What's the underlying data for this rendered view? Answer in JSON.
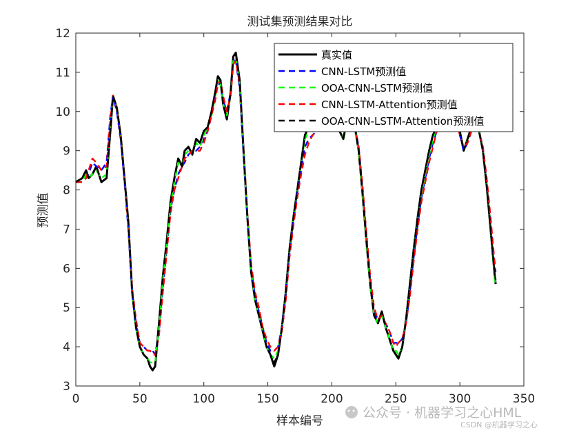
{
  "chart_data": {
    "type": "line",
    "title": "测试集预测结果对比",
    "xlabel": "样本编号",
    "ylabel": "预测值",
    "xlim": [
      0,
      350
    ],
    "ylim": [
      3,
      12
    ],
    "xticks": [
      0,
      50,
      100,
      150,
      200,
      250,
      300,
      350
    ],
    "yticks": [
      3,
      4,
      5,
      6,
      7,
      8,
      9,
      10,
      11,
      12
    ],
    "grid": false,
    "legend_position": "top-right",
    "series": [
      {
        "name": "真实值",
        "color": "#000000",
        "style": "solid",
        "x": [
          0,
          5,
          8,
          10,
          13,
          16,
          20,
          24,
          27,
          29,
          32,
          35,
          38,
          41,
          44,
          47,
          50,
          53,
          56,
          58,
          60,
          62,
          65,
          68,
          71,
          74,
          77,
          80,
          83,
          85,
          88,
          91,
          94,
          97,
          100,
          103,
          106,
          109,
          111,
          113,
          115,
          118,
          121,
          123,
          125,
          128,
          131,
          134,
          137,
          140,
          143,
          146,
          149,
          152,
          155,
          158,
          161,
          164,
          167,
          170,
          173,
          176,
          179,
          182,
          185,
          188,
          191,
          194,
          197,
          200,
          203,
          206,
          209,
          212,
          215,
          218,
          221,
          224,
          227,
          230,
          233,
          236,
          239,
          242,
          245,
          248,
          250,
          252,
          255,
          258,
          261,
          264,
          267,
          270,
          273,
          276,
          279,
          282,
          285,
          288,
          291,
          294,
          297,
          300,
          303,
          306,
          309,
          312,
          315,
          318,
          321,
          324,
          327,
          328
        ],
        "y": [
          8.2,
          8.3,
          8.5,
          8.3,
          8.4,
          8.6,
          8.2,
          8.3,
          9.5,
          10.4,
          10.1,
          9.4,
          8.3,
          7.2,
          5.4,
          4.5,
          4.0,
          3.8,
          3.7,
          3.5,
          3.4,
          3.5,
          4.6,
          5.8,
          6.7,
          7.7,
          8.3,
          8.8,
          8.6,
          9.0,
          9.1,
          8.9,
          9.3,
          9.2,
          9.5,
          9.6,
          10.0,
          10.5,
          10.9,
          10.8,
          10.2,
          9.8,
          10.5,
          11.4,
          11.5,
          10.8,
          9.0,
          7.3,
          5.9,
          5.2,
          4.8,
          4.4,
          4.0,
          3.8,
          3.5,
          3.8,
          4.5,
          5.4,
          6.5,
          7.3,
          8.0,
          8.7,
          9.4,
          9.6,
          9.5,
          9.7,
          9.8,
          9.9,
          10.0,
          9.9,
          9.7,
          9.5,
          9.3,
          9.8,
          9.9,
          9.6,
          9.0,
          7.9,
          6.7,
          5.6,
          4.8,
          4.6,
          4.9,
          4.5,
          4.2,
          3.9,
          3.8,
          3.7,
          4.0,
          4.7,
          5.6,
          6.5,
          7.3,
          8.0,
          8.5,
          9.0,
          9.4,
          9.6,
          9.7,
          9.8,
          9.9,
          10.0,
          9.9,
          9.5,
          9.0,
          9.3,
          9.6,
          9.7,
          9.5,
          9.0,
          8.1,
          7.0,
          5.9,
          5.6
        ]
      },
      {
        "name": "CNN-LSTM预测值",
        "color": "#0000ff",
        "style": "dashed",
        "x": [
          0,
          5,
          8,
          10,
          13,
          16,
          20,
          24,
          27,
          29,
          32,
          35,
          38,
          41,
          44,
          47,
          50,
          53,
          56,
          58,
          60,
          62,
          65,
          68,
          71,
          74,
          77,
          80,
          83,
          85,
          88,
          91,
          94,
          97,
          100,
          103,
          106,
          109,
          111,
          113,
          115,
          118,
          121,
          123,
          125,
          128,
          131,
          134,
          137,
          140,
          143,
          146,
          149,
          152,
          155,
          158,
          161,
          164,
          167,
          170,
          173,
          176,
          179,
          182,
          185,
          188,
          191,
          194,
          197,
          200,
          203,
          206,
          209,
          212,
          215,
          218,
          221,
          224,
          227,
          230,
          233,
          236,
          239,
          242,
          245,
          248,
          250,
          252,
          255,
          258,
          261,
          264,
          267,
          270,
          273,
          276,
          279,
          282,
          285,
          288,
          291,
          294,
          297,
          300,
          303,
          306,
          309,
          312,
          315,
          318,
          321,
          324,
          327,
          328
        ],
        "y": [
          8.2,
          8.2,
          8.3,
          8.4,
          8.7,
          8.6,
          8.5,
          8.7,
          9.9,
          10.4,
          10.0,
          9.3,
          8.2,
          7.0,
          5.4,
          4.6,
          4.1,
          4.0,
          3.9,
          3.9,
          3.9,
          3.8,
          4.4,
          5.5,
          6.5,
          7.5,
          8.0,
          8.4,
          8.6,
          8.7,
          8.9,
          9.0,
          9.0,
          9.1,
          9.3,
          9.5,
          9.9,
          10.4,
          10.7,
          10.7,
          10.3,
          10.0,
          10.5,
          11.3,
          11.3,
          10.6,
          8.9,
          7.3,
          6.0,
          5.3,
          4.9,
          4.5,
          4.1,
          3.9,
          3.9,
          4.0,
          4.5,
          5.3,
          6.4,
          7.2,
          7.9,
          8.5,
          9.1,
          9.3,
          9.4,
          9.5,
          9.6,
          9.7,
          9.8,
          9.8,
          9.7,
          9.6,
          9.5,
          9.6,
          9.7,
          9.6,
          9.1,
          8.0,
          6.8,
          5.7,
          4.9,
          4.7,
          4.8,
          4.6,
          4.4,
          4.1,
          4.1,
          4.1,
          4.2,
          4.6,
          5.4,
          6.3,
          7.1,
          7.8,
          8.3,
          8.8,
          9.2,
          9.5,
          9.7,
          9.8,
          9.9,
          9.9,
          9.8,
          9.4,
          9.0,
          9.2,
          9.5,
          9.6,
          9.5,
          9.0,
          8.2,
          7.2,
          6.1,
          5.9
        ]
      },
      {
        "name": "OOA-CNN-LSTM预测值",
        "color": "#00ff00",
        "style": "dashed",
        "x": [
          0,
          5,
          8,
          10,
          13,
          16,
          20,
          24,
          27,
          29,
          32,
          35,
          38,
          41,
          44,
          47,
          50,
          53,
          56,
          58,
          60,
          62,
          65,
          68,
          71,
          74,
          77,
          80,
          83,
          85,
          88,
          91,
          94,
          97,
          100,
          103,
          106,
          109,
          111,
          113,
          115,
          118,
          121,
          123,
          125,
          128,
          131,
          134,
          137,
          140,
          143,
          146,
          149,
          152,
          155,
          158,
          161,
          164,
          167,
          170,
          173,
          176,
          179,
          182,
          185,
          188,
          191,
          194,
          197,
          200,
          203,
          206,
          209,
          212,
          215,
          218,
          221,
          224,
          227,
          230,
          233,
          236,
          239,
          242,
          245,
          248,
          250,
          252,
          255,
          258,
          261,
          264,
          267,
          270,
          273,
          276,
          279,
          282,
          285,
          288,
          291,
          294,
          297,
          300,
          303,
          306,
          309,
          312,
          315,
          318,
          321,
          324,
          327,
          328
        ],
        "y": [
          8.2,
          8.2,
          8.4,
          8.3,
          8.4,
          8.5,
          8.3,
          8.4,
          9.6,
          10.4,
          10.1,
          9.4,
          8.3,
          7.1,
          5.4,
          4.5,
          4.0,
          3.8,
          3.7,
          3.6,
          3.6,
          3.6,
          4.5,
          5.7,
          6.6,
          7.6,
          8.2,
          8.7,
          8.6,
          8.9,
          9.0,
          8.9,
          9.2,
          9.1,
          9.4,
          9.6,
          9.9,
          10.4,
          10.8,
          10.7,
          10.2,
          9.9,
          10.4,
          11.3,
          11.4,
          10.7,
          9.0,
          7.3,
          5.9,
          5.2,
          4.8,
          4.4,
          4.0,
          3.8,
          3.7,
          3.9,
          4.5,
          5.4,
          6.5,
          7.3,
          8.0,
          8.7,
          9.3,
          9.5,
          9.5,
          9.6,
          9.7,
          9.8,
          9.9,
          9.9,
          9.7,
          9.5,
          9.3,
          9.7,
          9.8,
          9.6,
          9.0,
          7.9,
          6.7,
          5.6,
          4.8,
          4.6,
          4.8,
          4.5,
          4.2,
          3.9,
          3.9,
          3.8,
          4.0,
          4.7,
          5.6,
          6.5,
          7.3,
          7.9,
          8.4,
          8.9,
          9.3,
          9.6,
          9.7,
          9.8,
          9.9,
          10.0,
          9.9,
          9.5,
          9.0,
          9.3,
          9.6,
          9.7,
          9.5,
          9.0,
          8.1,
          7.0,
          5.8,
          5.6
        ]
      },
      {
        "name": "CNN-LSTM-Attention预测值",
        "color": "#ff0000",
        "style": "dashed",
        "x": [
          0,
          5,
          8,
          10,
          13,
          16,
          20,
          24,
          27,
          29,
          32,
          35,
          38,
          41,
          44,
          47,
          50,
          53,
          56,
          58,
          60,
          62,
          65,
          68,
          71,
          74,
          77,
          80,
          83,
          85,
          88,
          91,
          94,
          97,
          100,
          103,
          106,
          109,
          111,
          113,
          115,
          118,
          121,
          123,
          125,
          128,
          131,
          134,
          137,
          140,
          143,
          146,
          149,
          152,
          155,
          158,
          161,
          164,
          167,
          170,
          173,
          176,
          179,
          182,
          185,
          188,
          191,
          194,
          197,
          200,
          203,
          206,
          209,
          212,
          215,
          218,
          221,
          224,
          227,
          230,
          233,
          236,
          239,
          242,
          245,
          248,
          250,
          252,
          255,
          258,
          261,
          264,
          267,
          270,
          273,
          276,
          279,
          282,
          285,
          288,
          291,
          294,
          297,
          300,
          303,
          306,
          309,
          312,
          315,
          318,
          321,
          324,
          327,
          328
        ],
        "y": [
          8.2,
          8.2,
          8.3,
          8.5,
          8.8,
          8.7,
          8.5,
          8.6,
          9.8,
          10.4,
          10.1,
          9.4,
          8.3,
          7.1,
          5.5,
          4.7,
          4.1,
          4.0,
          3.9,
          3.9,
          3.8,
          3.8,
          4.3,
          5.4,
          6.4,
          7.4,
          8.0,
          8.3,
          8.6,
          8.8,
          8.9,
          9.0,
          9.0,
          9.0,
          9.2,
          9.5,
          9.9,
          10.3,
          10.7,
          10.8,
          10.4,
          10.0,
          10.4,
          11.2,
          11.3,
          10.7,
          9.0,
          7.4,
          6.1,
          5.4,
          5.0,
          4.5,
          4.2,
          4.0,
          3.9,
          4.0,
          4.4,
          5.2,
          6.3,
          7.1,
          7.8,
          8.4,
          8.9,
          9.2,
          9.4,
          9.5,
          9.5,
          9.7,
          9.8,
          9.8,
          9.7,
          9.6,
          9.5,
          9.6,
          9.7,
          9.6,
          9.1,
          8.1,
          6.9,
          5.8,
          5.0,
          4.7,
          4.8,
          4.6,
          4.4,
          4.1,
          4.0,
          4.1,
          4.2,
          4.6,
          5.3,
          6.2,
          7.0,
          7.7,
          8.2,
          8.7,
          9.1,
          9.5,
          9.7,
          9.8,
          9.9,
          9.9,
          9.8,
          9.4,
          9.1,
          9.2,
          9.5,
          9.6,
          9.5,
          9.1,
          8.3,
          7.3,
          6.2,
          6.0
        ]
      },
      {
        "name": "OOA-CNN-LSTM-Attention预测值",
        "color": "#000000",
        "style": "dashed",
        "x": [
          0,
          5,
          8,
          10,
          13,
          16,
          20,
          24,
          27,
          29,
          32,
          35,
          38,
          41,
          44,
          47,
          50,
          53,
          56,
          58,
          60,
          62,
          65,
          68,
          71,
          74,
          77,
          80,
          83,
          85,
          88,
          91,
          94,
          97,
          100,
          103,
          106,
          109,
          111,
          113,
          115,
          118,
          121,
          123,
          125,
          128,
          131,
          134,
          137,
          140,
          143,
          146,
          149,
          152,
          155,
          158,
          161,
          164,
          167,
          170,
          173,
          176,
          179,
          182,
          185,
          188,
          191,
          194,
          197,
          200,
          203,
          206,
          209,
          212,
          215,
          218,
          221,
          224,
          227,
          230,
          233,
          236,
          239,
          242,
          245,
          248,
          250,
          252,
          255,
          258,
          261,
          264,
          267,
          270,
          273,
          276,
          279,
          282,
          285,
          288,
          291,
          294,
          297,
          300,
          303,
          306,
          309,
          312,
          315,
          318,
          321,
          324,
          327,
          328
        ],
        "y": [
          8.2,
          8.3,
          8.5,
          8.3,
          8.4,
          8.6,
          8.2,
          8.3,
          9.5,
          10.4,
          10.1,
          9.4,
          8.3,
          7.2,
          5.4,
          4.5,
          4.0,
          3.8,
          3.7,
          3.5,
          3.5,
          3.5,
          4.6,
          5.8,
          6.7,
          7.7,
          8.3,
          8.8,
          8.6,
          9.0,
          9.1,
          8.9,
          9.3,
          9.2,
          9.5,
          9.6,
          10.0,
          10.5,
          10.9,
          10.8,
          10.2,
          9.8,
          10.5,
          11.4,
          11.5,
          10.8,
          9.0,
          7.3,
          5.9,
          5.2,
          4.8,
          4.4,
          4.0,
          3.8,
          3.6,
          3.8,
          4.5,
          5.4,
          6.5,
          7.3,
          8.0,
          8.7,
          9.4,
          9.6,
          9.5,
          9.7,
          9.8,
          9.9,
          10.0,
          9.9,
          9.7,
          9.5,
          9.3,
          9.8,
          9.9,
          9.6,
          9.0,
          7.9,
          6.7,
          5.6,
          4.8,
          4.6,
          4.9,
          4.5,
          4.2,
          3.9,
          3.8,
          3.7,
          4.0,
          4.7,
          5.6,
          6.5,
          7.3,
          8.0,
          8.5,
          9.0,
          9.4,
          9.6,
          9.7,
          9.8,
          9.9,
          10.0,
          9.9,
          9.5,
          9.0,
          9.3,
          9.6,
          9.7,
          9.5,
          9.0,
          8.1,
          7.0,
          5.9,
          5.7
        ]
      }
    ]
  },
  "watermark": {
    "brand": "公众号 · 机器学习之心HML",
    "source": "CSDN @机器学习之心"
  }
}
